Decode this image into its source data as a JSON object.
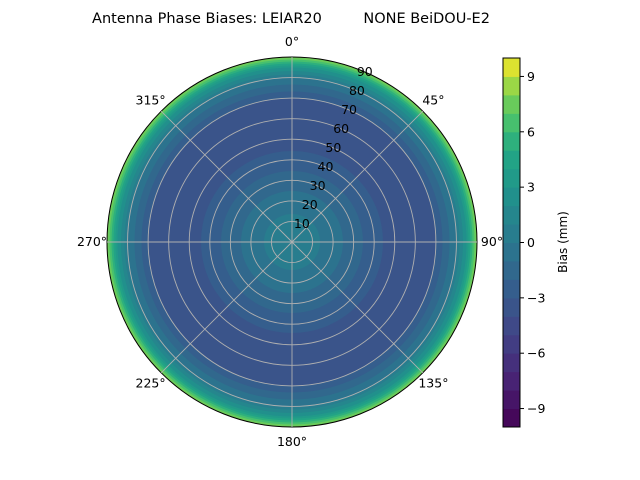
{
  "chart_data": {
    "type": "polar-contour",
    "title": "Antenna Phase Biases: LEIAR20         NONE BeiDOU-E2",
    "theta_direction": "clockwise",
    "theta_zero": "top",
    "theta_tick_labels": [
      "0°",
      "45°",
      "90°",
      "135°",
      "180°",
      "225°",
      "270°",
      "315°"
    ],
    "radial_range": [
      0,
      90
    ],
    "radial_tick_labels": [
      "10",
      "20",
      "30",
      "40",
      "50",
      "60",
      "70",
      "80",
      "90"
    ],
    "grid": true,
    "profile": {
      "zenith_deg": [
        0,
        10,
        20,
        30,
        40,
        50,
        60,
        70,
        80,
        85,
        90
      ],
      "bias_mm": [
        0.6,
        0.3,
        -0.5,
        -1.5,
        -2.6,
        -3.5,
        -3.8,
        -3.0,
        0.0,
        3.0,
        8.0
      ]
    },
    "colorbar": {
      "label": "Bias (mm)",
      "range": [
        -10,
        10
      ],
      "levels": 20,
      "ticks": [
        "-9",
        "-6",
        "-3",
        "0",
        "3",
        "6",
        "9"
      ],
      "colormap": "viridis"
    }
  }
}
